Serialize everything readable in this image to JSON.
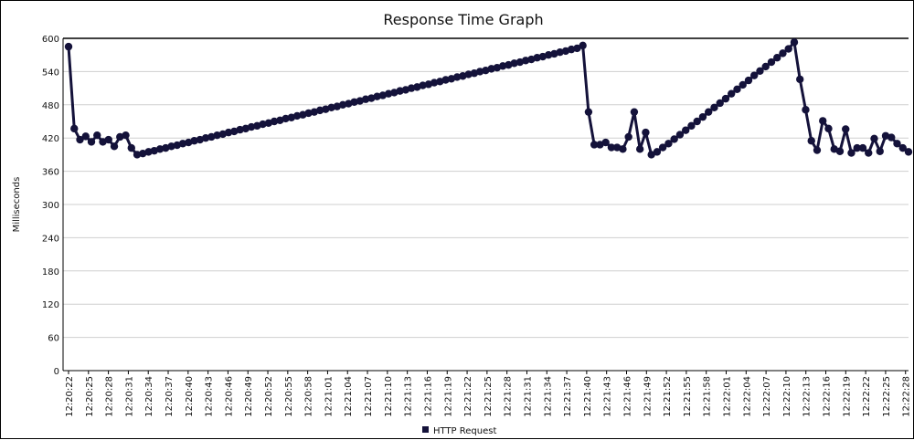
{
  "chart_data": {
    "type": "line",
    "title": "Response Time Graph",
    "xlabel": "",
    "ylabel": "Milliseconds",
    "ylim": [
      0,
      600
    ],
    "yticks": [
      0,
      60,
      120,
      180,
      240,
      300,
      360,
      420,
      480,
      540,
      600
    ],
    "grid": true,
    "legend_position": "bottom-center",
    "xtick_labels": [
      "12:20:22",
      "12:20:25",
      "12:20:28",
      "12:20:31",
      "12:20:34",
      "12:20:37",
      "12:20:40",
      "12:20:43",
      "12:20:46",
      "12:20:49",
      "12:20:52",
      "12:20:55",
      "12:20:58",
      "12:21:01",
      "12:21:04",
      "12:21:07",
      "12:21:10",
      "12:21:13",
      "12:21:16",
      "12:21:19",
      "12:21:22",
      "12:21:25",
      "12:21:28",
      "12:21:31",
      "12:21:34",
      "12:21:37",
      "12:21:40",
      "12:21:43",
      "12:21:46",
      "12:21:49",
      "12:21:52",
      "12:21:55",
      "12:21:58",
      "12:22:01",
      "12:22:04",
      "12:22:07",
      "12:22:10",
      "12:22:13",
      "12:22:16",
      "12:22:19",
      "12:22:22",
      "12:22:25",
      "12:22:28"
    ],
    "series": [
      {
        "name": "HTTP Request",
        "color": "#14123a",
        "values": [
          585,
          437,
          417,
          423,
          413,
          425,
          413,
          417,
          405,
          422,
          425,
          402,
          390,
          392,
          395,
          397,
          400,
          402,
          405,
          407,
          410,
          412,
          415,
          417,
          420,
          422,
          425,
          427,
          430,
          432,
          435,
          437,
          440,
          442,
          445,
          447,
          450,
          452,
          455,
          457,
          460,
          462,
          465,
          467,
          470,
          472,
          475,
          477,
          480,
          482,
          485,
          487,
          490,
          492,
          495,
          497,
          500,
          502,
          505,
          507,
          510,
          512,
          515,
          517,
          520,
          522,
          525,
          527,
          530,
          532,
          535,
          537,
          540,
          542,
          545,
          547,
          550,
          552,
          555,
          557,
          560,
          562,
          565,
          567,
          570,
          572,
          575,
          577,
          580,
          582,
          587,
          467,
          408,
          408,
          412,
          403,
          403,
          400,
          422,
          467,
          400,
          430,
          390,
          395,
          403,
          410,
          418,
          426,
          434,
          442,
          450,
          458,
          467,
          475,
          483,
          491,
          500,
          508,
          516,
          524,
          533,
          541,
          549,
          557,
          565,
          573,
          581,
          593,
          526,
          471,
          415,
          398,
          451,
          437,
          400,
          396,
          436,
          393,
          402,
          402,
          393,
          419,
          396,
          424,
          421,
          410,
          402,
          395
        ]
      }
    ]
  }
}
